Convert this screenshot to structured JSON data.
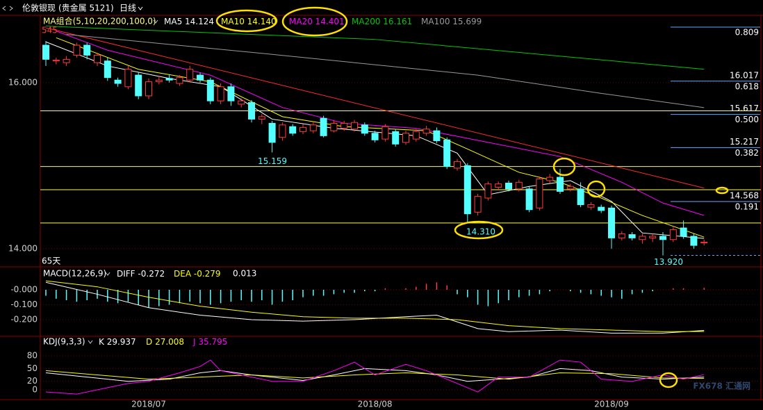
{
  "header": {
    "symbol": "伦敦银现",
    "market": "(贵金属 5121)",
    "period": "日线"
  },
  "watermark": "FX678 汇通网",
  "chart_data": [
    {
      "type": "candlestick",
      "categories": [
        null,
        null,
        null,
        null,
        null,
        null,
        null,
        null,
        null,
        null,
        "2018/07",
        null,
        null,
        null,
        null,
        null,
        null,
        null,
        null,
        null,
        null,
        null,
        null,
        null,
        null,
        null,
        null,
        null,
        null,
        null,
        null,
        null,
        "2018/08",
        null,
        null,
        null,
        null,
        null,
        null,
        null,
        null,
        null,
        null,
        null,
        null,
        null,
        null,
        null,
        null,
        null,
        null,
        null,
        null,
        null,
        null,
        "2018/09",
        null,
        null,
        null,
        null,
        null,
        null,
        null,
        null,
        null
      ],
      "open": [
        16.45,
        16.26,
        16.24,
        16.33,
        16.45,
        16.24,
        16.26,
        16.03,
        15.95,
        16.09,
        15.84,
        16.01,
        16.05,
        15.99,
        16.03,
        16.09,
        16.03,
        15.78,
        15.95,
        15.74,
        15.76,
        15.56,
        15.51,
        15.34,
        15.47,
        15.41,
        15.42,
        15.57,
        15.42,
        15.45,
        15.44,
        15.49,
        15.39,
        15.32,
        15.41,
        15.28,
        15.32,
        15.39,
        15.42,
        15.31,
        14.97,
        15.0,
        14.44,
        14.61,
        14.74,
        14.79,
        14.72,
        14.72,
        14.49,
        14.82,
        14.86,
        14.72,
        14.72,
        14.5,
        14.5,
        14.49,
        14.13,
        14.17,
        14.11,
        14.13,
        14.15,
        14.11,
        14.25,
        14.15,
        14.07
      ],
      "high": [
        16.5,
        16.3,
        16.32,
        16.48,
        16.48,
        16.36,
        16.3,
        16.06,
        16.2,
        16.12,
        16.05,
        16.08,
        16.1,
        16.09,
        16.2,
        16.12,
        16.06,
        15.99,
        15.99,
        15.81,
        15.79,
        15.62,
        15.54,
        15.52,
        15.5,
        15.5,
        15.52,
        15.6,
        15.55,
        15.54,
        15.55,
        15.52,
        15.42,
        15.5,
        15.44,
        15.42,
        15.44,
        15.48,
        15.46,
        15.34,
        15.08,
        15.03,
        14.66,
        14.81,
        14.81,
        14.82,
        14.83,
        14.75,
        14.87,
        14.9,
        14.96,
        14.78,
        14.8,
        14.56,
        14.53,
        14.52,
        14.21,
        14.2,
        14.18,
        14.18,
        14.2,
        14.26,
        14.34,
        14.18,
        14.11
      ],
      "low": [
        16.2,
        16.22,
        16.2,
        16.3,
        16.28,
        16.2,
        16.02,
        15.95,
        15.92,
        15.8,
        15.8,
        15.98,
        16.0,
        15.96,
        16.0,
        16.0,
        15.74,
        15.74,
        15.72,
        15.7,
        15.52,
        15.5,
        15.159,
        15.3,
        15.36,
        15.38,
        15.39,
        15.34,
        15.4,
        15.42,
        15.41,
        15.36,
        15.28,
        15.29,
        15.23,
        15.25,
        15.29,
        15.36,
        15.27,
        14.96,
        14.94,
        14.31,
        14.4,
        14.58,
        14.71,
        14.69,
        14.69,
        14.44,
        14.46,
        14.79,
        14.66,
        14.69,
        14.5,
        14.47,
        14.43,
        14.0,
        14.1,
        14.1,
        14.06,
        14.08,
        13.92,
        14.08,
        14.12,
        14.0,
        14.04
      ],
      "close": [
        16.28,
        16.27,
        16.28,
        16.45,
        16.33,
        16.33,
        16.06,
        15.99,
        16.16,
        15.84,
        16.01,
        16.03,
        16.03,
        16.06,
        16.16,
        16.03,
        15.78,
        15.95,
        15.78,
        15.78,
        15.56,
        15.59,
        15.28,
        15.49,
        15.39,
        15.46,
        15.49,
        15.36,
        15.51,
        15.51,
        15.52,
        15.39,
        15.31,
        15.47,
        15.26,
        15.39,
        15.41,
        15.44,
        15.3,
        14.99,
        15.05,
        14.42,
        14.63,
        14.78,
        14.78,
        14.72,
        14.8,
        14.47,
        14.84,
        14.86,
        14.69,
        14.75,
        14.53,
        14.53,
        14.46,
        14.13,
        14.18,
        14.13,
        14.15,
        14.15,
        14.11,
        14.23,
        14.15,
        14.04,
        14.08
      ],
      "up_color": "#ff3b3b",
      "down_color": "#54ffff",
      "ylim": [
        13.79,
        16.76
      ],
      "yticks": [
        {
          "value": 14,
          "label": "14.000"
        },
        {
          "value": 16,
          "label": "16.000"
        }
      ],
      "grid": true,
      "group_label": "MA组合(5,10,20,200,100,0)",
      "lines": [
        {
          "name": "MA5",
          "color": "#ffffff",
          "x": [
            0,
            6,
            12,
            17,
            22,
            28,
            36,
            40,
            43,
            47,
            51,
            55,
            58,
            64
          ],
          "values": [
            16.49,
            16.2,
            16.05,
            15.95,
            15.56,
            15.45,
            15.36,
            15.15,
            14.65,
            14.75,
            14.82,
            14.57,
            14.19,
            14.124
          ]
        },
        {
          "name": "MA10",
          "color": "#ffff00",
          "x": [
            1,
            9,
            16,
            23,
            29,
            37,
            41,
            46,
            50,
            54,
            58,
            64
          ],
          "values": [
            16.54,
            16.16,
            16.01,
            15.59,
            15.47,
            15.42,
            15.2,
            14.92,
            14.8,
            14.61,
            14.4,
            14.14
          ],
          "last_label": "14.140"
        },
        {
          "name": "MA20",
          "color": "#ff00ff",
          "x": [
            1,
            6,
            16,
            23,
            29,
            36,
            43,
            50,
            56,
            60,
            64
          ],
          "values": [
            16.62,
            16.39,
            16.09,
            15.7,
            15.51,
            15.45,
            15.28,
            15.11,
            14.8,
            14.55,
            14.401
          ]
        },
        {
          "name": "MA200",
          "color": "#00c800",
          "x": [
            0,
            32,
            64
          ],
          "values": [
            16.68,
            16.52,
            16.161
          ]
        },
        {
          "name": "MA100",
          "color": "#9a9a9a",
          "x": [
            2,
            22,
            42,
            54,
            64
          ],
          "values": [
            16.58,
            16.34,
            16.09,
            15.87,
            15.699
          ]
        }
      ],
      "trendline": {
        "color": "#ff2a2a",
        "x": [
          0,
          64
        ],
        "values": [
          16.66,
          14.73
        ]
      },
      "hlines": [
        15.66,
        14.99,
        14.71,
        14.31
      ],
      "hline_color": "#ffff40",
      "fib_top_ratio": 0.809,
      "fib": [
        {
          "price": 16.017,
          "ratio": 0.618
        },
        {
          "price": 15.617,
          "ratio": {
            "value": 0.5,
            "label": "0.500"
          }
        },
        {
          "price": 15.217,
          "ratio": 0.382
        },
        {
          "price": 14.568,
          "ratio": 0.191
        }
      ],
      "fib_base": {
        "value": 13.92,
        "label": "13.920"
      },
      "low_labels": [
        15.159,
        {
          "value": 14.31,
          "label": "14.310"
        }
      ],
      "corner_text": "545",
      "count_text": "65天"
    },
    {
      "type": "macd",
      "label": "MACD(12,26,9)",
      "ylim": [
        -0.307,
        0.1395
      ],
      "yticks": [
        {
          "value": 0,
          "label": "-0.000"
        },
        {
          "value": -0.1,
          "label": "-0.100"
        },
        {
          "value": -0.2,
          "label": "-0.200"
        }
      ],
      "grid": true,
      "series": [
        {
          "name": "DIFF",
          "color": "#ffffff",
          "x": [
            0,
            5,
            10,
            15,
            20,
            25,
            30,
            35,
            38,
            42,
            45,
            50,
            55,
            60,
            64
          ],
          "values": [
            0.05,
            -0.03,
            -0.12,
            -0.17,
            -0.2,
            -0.21,
            -0.2,
            -0.18,
            -0.17,
            -0.26,
            -0.28,
            -0.27,
            -0.29,
            -0.29,
            -0.272
          ]
        },
        {
          "name": "DEA",
          "color": "#ffff00",
          "x": [
            0,
            5,
            10,
            15,
            20,
            25,
            30,
            35,
            40,
            45,
            50,
            55,
            60,
            64
          ],
          "values": [
            0.06,
            0.02,
            -0.05,
            -0.11,
            -0.15,
            -0.18,
            -0.19,
            -0.19,
            -0.2,
            -0.24,
            -0.26,
            -0.27,
            -0.28,
            -0.279
          ]
        }
      ],
      "histogram": {
        "up_color": "#ff3b3b",
        "down_color": "#54ffff",
        "values": [
          -0.04,
          -0.06,
          -0.07,
          -0.08,
          -0.07,
          -0.06,
          -0.08,
          -0.09,
          -0.08,
          -0.1,
          -0.12,
          -0.11,
          -0.1,
          -0.09,
          -0.08,
          -0.09,
          -0.1,
          -0.09,
          -0.08,
          -0.07,
          -0.08,
          -0.07,
          -0.1,
          -0.08,
          -0.07,
          -0.05,
          -0.04,
          -0.04,
          -0.03,
          -0.02,
          -0.02,
          -0.01,
          -0.01,
          0.01,
          0,
          0.01,
          0.02,
          0.04,
          0.05,
          0.03,
          -0.03,
          -0.05,
          -0.1,
          -0.11,
          -0.09,
          -0.07,
          -0.05,
          -0.04,
          -0.03,
          -0.01,
          0,
          -0.01,
          -0.02,
          -0.03,
          -0.04,
          -0.05,
          -0.06,
          -0.03,
          -0.02,
          -0.01,
          0,
          0.01,
          0.01,
          0,
          0.013
        ]
      }
    },
    {
      "type": "kdj",
      "label": "KDJ(9,3,3)",
      "ylim": [
        -22.9,
        124.1
      ],
      "yticks": [
        0,
        20,
        50,
        80
      ],
      "grid": true,
      "series": [
        {
          "name": "K",
          "color": "#ffffff",
          "x": [
            0,
            4,
            8,
            12,
            15,
            17,
            20,
            25,
            28,
            31,
            35,
            38,
            41,
            44,
            47,
            50,
            53,
            56,
            60,
            64
          ],
          "values": [
            40,
            30,
            20,
            25,
            40,
            45,
            35,
            22,
            35,
            50,
            45,
            35,
            20,
            25,
            30,
            50,
            45,
            30,
            25,
            29.937
          ]
        },
        {
          "name": "D",
          "color": "#ffff00",
          "x": [
            0,
            5,
            10,
            15,
            20,
            25,
            30,
            35,
            40,
            45,
            50,
            55,
            60,
            64
          ],
          "values": [
            45,
            35,
            25,
            30,
            35,
            28,
            35,
            40,
            35,
            25,
            40,
            38,
            28,
            27.008
          ]
        },
        {
          "name": "J",
          "color": "#ff00ff",
          "x": [
            0,
            3,
            6,
            8,
            10,
            13,
            15,
            16,
            17,
            20,
            22,
            25,
            28,
            30,
            32,
            35,
            37,
            40,
            42,
            44,
            47,
            50,
            52,
            54,
            57,
            60,
            62,
            64
          ],
          "values": [
            -5,
            -10,
            5,
            15,
            20,
            40,
            55,
            70,
            45,
            30,
            20,
            20,
            45,
            65,
            35,
            60,
            45,
            15,
            -5,
            30,
            30,
            70,
            65,
            25,
            20,
            35,
            25,
            35.795
          ]
        }
      ]
    }
  ]
}
